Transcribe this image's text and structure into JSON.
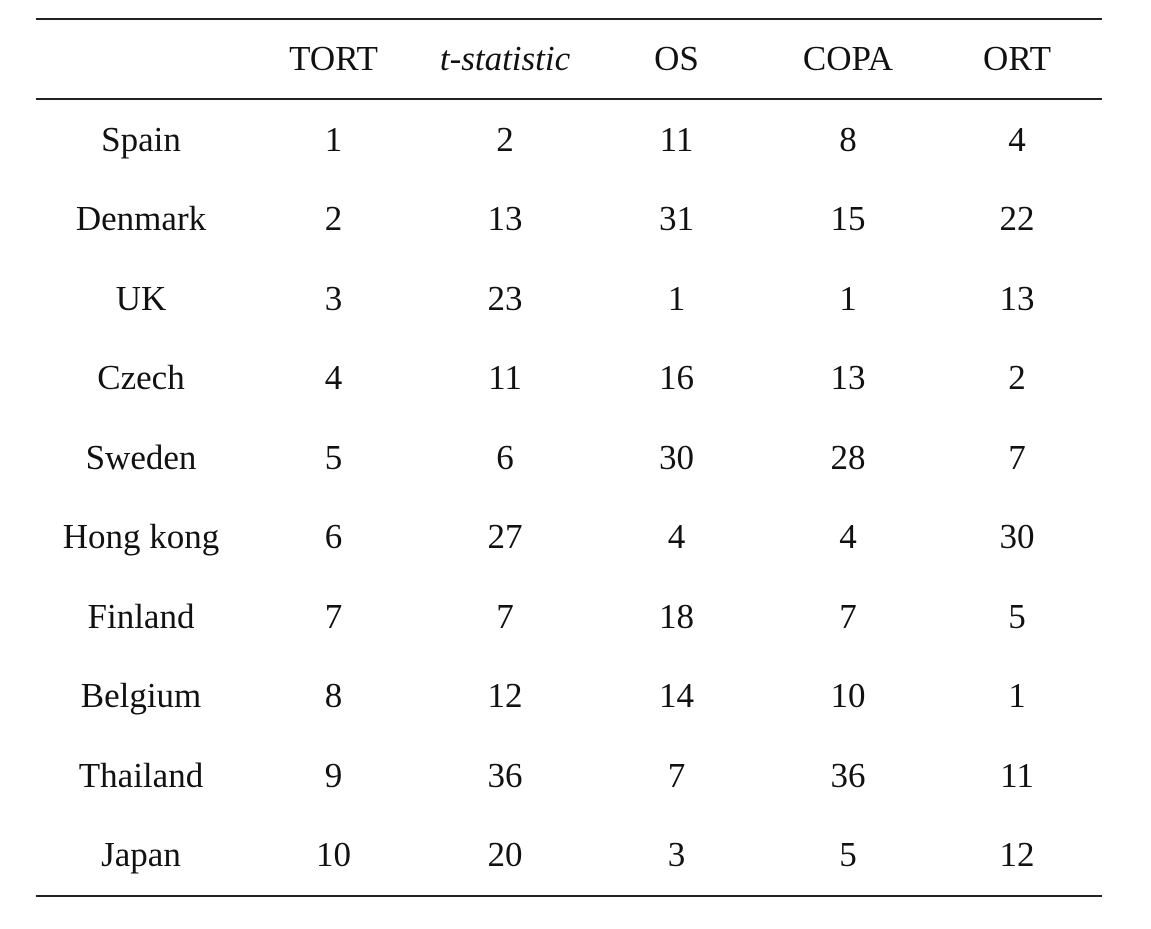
{
  "table": {
    "headers": [
      "",
      "TORT",
      "t-statistic",
      "OS",
      "COPA",
      "ORT"
    ],
    "rows": [
      {
        "country": "Spain",
        "values": [
          "1",
          "2",
          "11",
          "8",
          "4"
        ]
      },
      {
        "country": "Denmark",
        "values": [
          "2",
          "13",
          "31",
          "15",
          "22"
        ]
      },
      {
        "country": "UK",
        "values": [
          "3",
          "23",
          "1",
          "1",
          "13"
        ]
      },
      {
        "country": "Czech",
        "values": [
          "4",
          "11",
          "16",
          "13",
          "2"
        ]
      },
      {
        "country": "Sweden",
        "values": [
          "5",
          "6",
          "30",
          "28",
          "7"
        ]
      },
      {
        "country": "Hong kong",
        "values": [
          "6",
          "27",
          "4",
          "4",
          "30"
        ]
      },
      {
        "country": "Finland",
        "values": [
          "7",
          "7",
          "18",
          "7",
          "5"
        ]
      },
      {
        "country": "Belgium",
        "values": [
          "8",
          "12",
          "14",
          "10",
          "1"
        ]
      },
      {
        "country": "Thailand",
        "values": [
          "9",
          "36",
          "7",
          "36",
          "11"
        ]
      },
      {
        "country": "Japan",
        "values": [
          "10",
          "20",
          "3",
          "5",
          "12"
        ]
      }
    ]
  }
}
